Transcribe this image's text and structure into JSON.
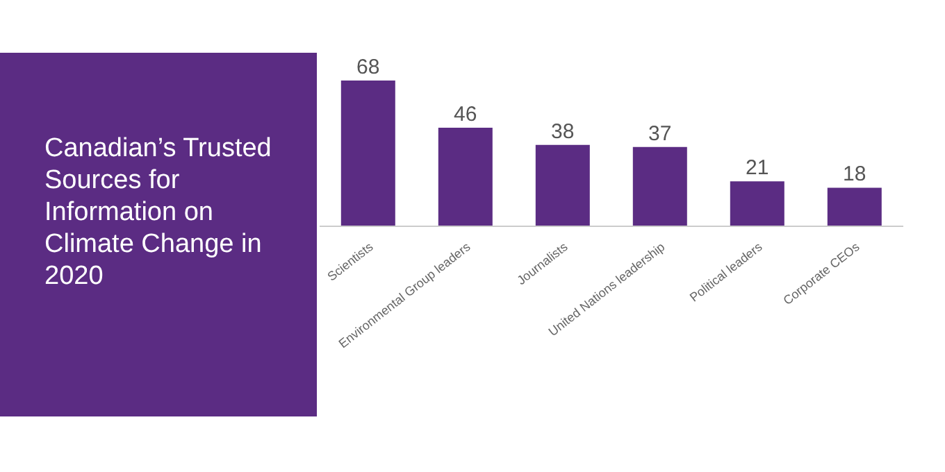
{
  "chart_data": {
    "type": "bar",
    "title": "Canadian’s Trusted Sources for Information on Climate Change in 2020",
    "categories": [
      "Scientists",
      "Environmental Group leaders",
      "Journalists",
      "United Nations leadership",
      "Political leaders",
      "Corporate CEOs"
    ],
    "values": [
      68,
      46,
      38,
      37,
      21,
      18
    ],
    "color": "#5b2c83",
    "data_labels": true,
    "grid": false,
    "legend": false
  }
}
